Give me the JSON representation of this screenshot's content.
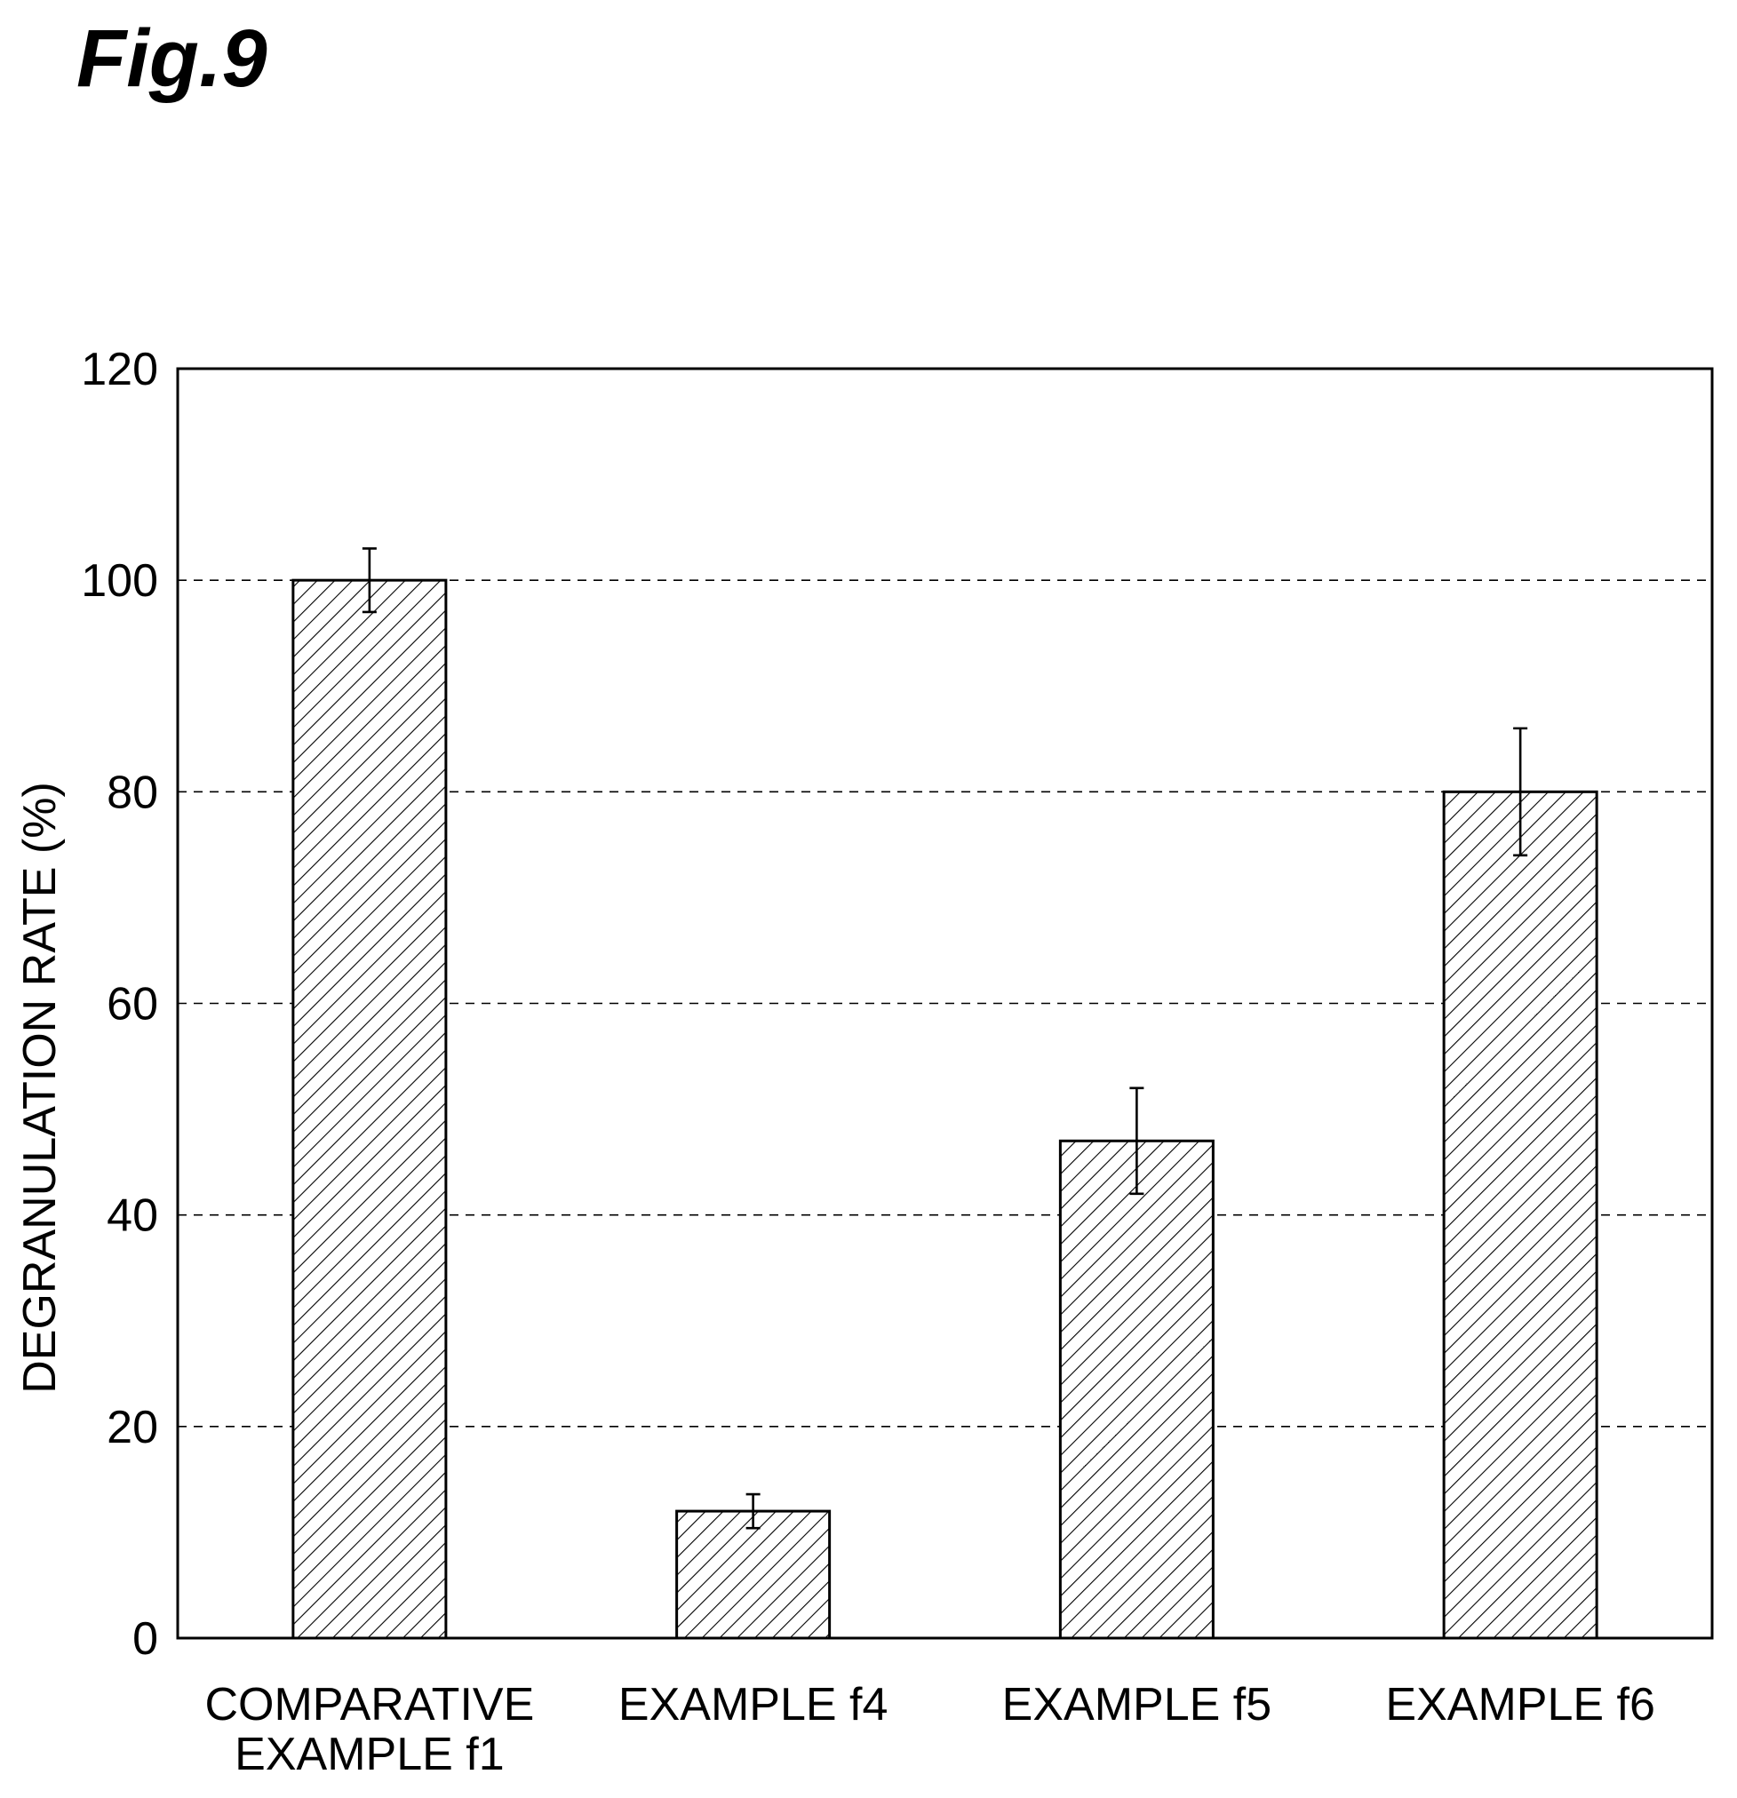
{
  "figure_label": "Fig.9",
  "chart_data": {
    "type": "bar",
    "title": "",
    "xlabel": "",
    "ylabel": "DEGRANULATION RATE (%)",
    "ylim": [
      0,
      120
    ],
    "yticks": [
      0,
      20,
      40,
      60,
      80,
      100,
      120
    ],
    "grid": "dashed horizontal at 20, 40, 60, 80, 100",
    "categories": [
      [
        "COMPARATIVE",
        "EXAMPLE f1"
      ],
      [
        "EXAMPLE f4"
      ],
      [
        "EXAMPLE f5"
      ],
      [
        "EXAMPLE f6"
      ]
    ],
    "values": [
      100,
      12,
      47,
      80
    ],
    "error": [
      3,
      1.6,
      5,
      6
    ],
    "bar_fill": "diagonal hatch",
    "bar_stroke": "#000000"
  }
}
